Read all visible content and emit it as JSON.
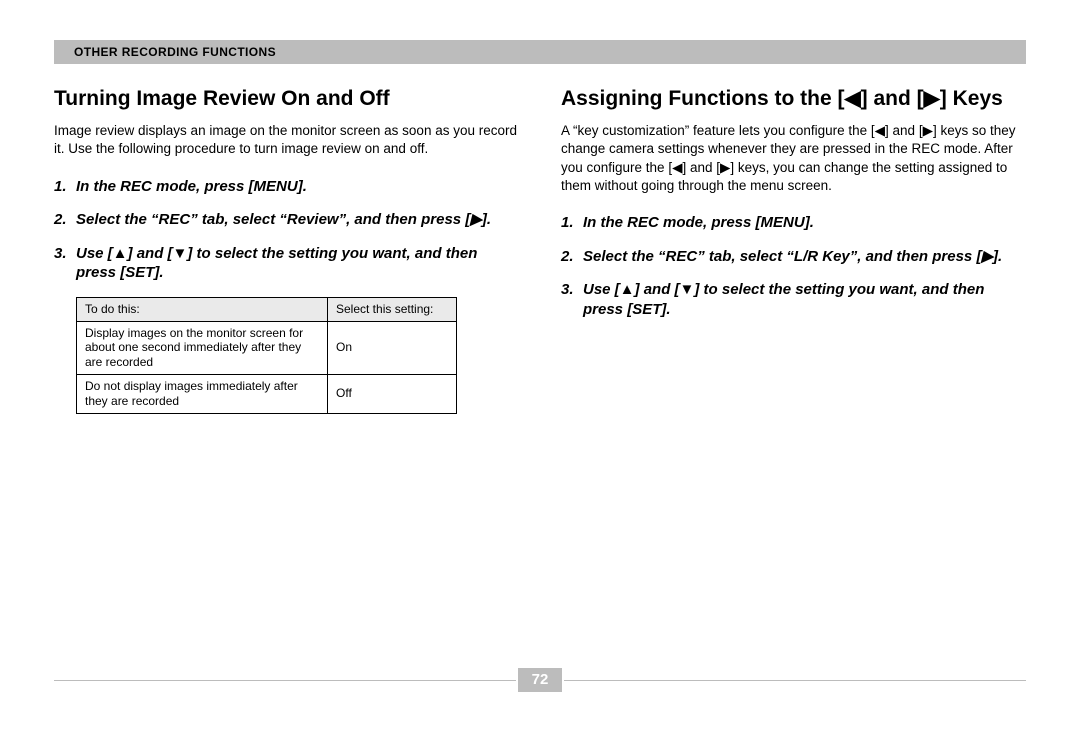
{
  "header": {
    "title": "OTHER RECORDING FUNCTIONS"
  },
  "left": {
    "heading": "Turning Image Review On and Off",
    "intro": "Image review displays an image on the monitor screen as soon as you record it. Use the following procedure to turn image review on and off.",
    "steps": [
      "In the REC mode, press [MENU].",
      "Select the “REC” tab, select “Review”, and then press [▶].",
      "Use [▲] and [▼] to select the setting you want, and then press [SET]."
    ],
    "table": {
      "head": [
        "To do this:",
        "Select this setting:"
      ],
      "rows": [
        [
          "Display images on the monitor screen for about one second immediately after they are recorded",
          "On"
        ],
        [
          "Do not display images immediately after they are recorded",
          "Off"
        ]
      ]
    }
  },
  "right": {
    "heading": "Assigning Functions to the [◀] and [▶] Keys",
    "intro": "A “key customization” feature lets you configure the [◀] and [▶] keys so they change camera settings whenever they are pressed in the REC mode. After you configure the [◀] and [▶] keys, you can change the setting assigned to them without going through the menu screen.",
    "steps": [
      "In the REC mode, press [MENU].",
      "Select the “REC” tab, select “L/R Key”, and then press [▶].",
      "Use [▲] and [▼] to select the setting you want, and then press [SET]."
    ]
  },
  "page_number": "72",
  "style": {
    "header_bg": "#bcbcbc",
    "header_text": "#000000",
    "body_font_size_pt": 10,
    "heading_font_size_pt": 16,
    "step_font_size_pt": 11,
    "table_font_size_pt": 9,
    "table_header_bg": "#eaeaea",
    "rule_color": "#bcbcbc",
    "page_bg": "#ffffff"
  }
}
